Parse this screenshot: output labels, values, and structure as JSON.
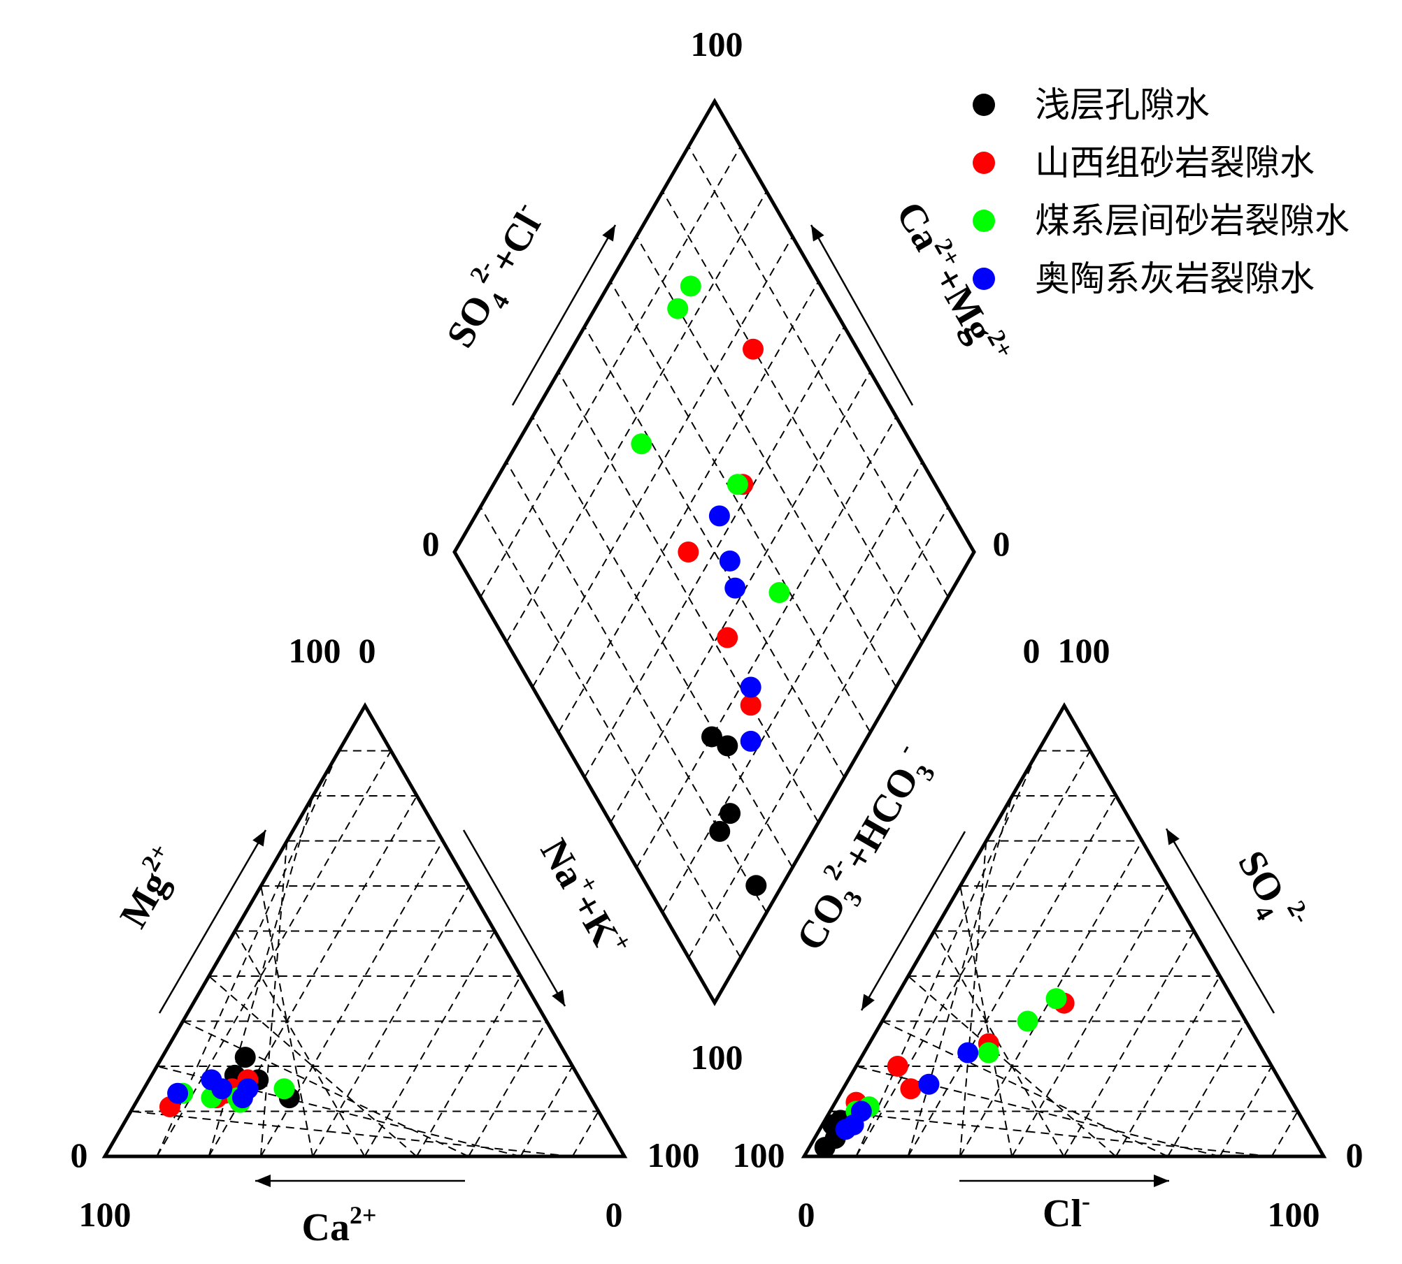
{
  "chart_data": {
    "type": "scatter",
    "subtype": "piper",
    "legend": {
      "position": "top-right",
      "entries": [
        {
          "name": "浅层孔隙水",
          "color": "#000000"
        },
        {
          "name": "山西组砂岩裂隙水",
          "color": "#ff0000"
        },
        {
          "name": "煤系层间砂岩裂隙水",
          "color": "#00ff00"
        },
        {
          "name": "奥陶系灰岩裂隙水",
          "color": "#0000ff"
        }
      ]
    },
    "axes": {
      "cation": {
        "bottom": "Ca",
        "bottom_sup": "2+",
        "left": "Mg",
        "left_sup": "2+",
        "right_a": "Na",
        "right_sup_a": "+",
        "right_b": "+K",
        "right_sup_b": "+"
      },
      "anion": {
        "bottom": "Cl",
        "bottom_sup": "-",
        "right": "SO",
        "right_sub": "4",
        "right_sup": "2-",
        "left_a": "CO",
        "left_sub_a": "3",
        "left_sup_a": "2-",
        "left_b": "+HCO",
        "left_sub_b": "3",
        "left_sup_b": "-"
      },
      "diamond": {
        "upper_left_a": "SO",
        "upper_left_sub": "4",
        "upper_left_sup": "2-",
        "upper_left_b": "+Cl",
        "upper_left_sup_b": "-",
        "upper_right_a": "Ca",
        "upper_right_sup": "2+",
        "upper_right_b": "+Mg",
        "upper_right_sup_b": "2+"
      }
    },
    "tick_labels": {
      "diamond_top": "100",
      "diamond_left": "0",
      "diamond_right": "0",
      "diamond_bottom": "100",
      "cation_apex": "100  0",
      "anion_apex": "0  100",
      "cation_bottom_left": "0",
      "cation_bottom_left_low": "100",
      "cation_bottom_right_low": "0",
      "cation_right": "100",
      "anion_left": "100",
      "anion_bottom_left": "0",
      "anion_right": "0",
      "anion_bottom_right": "100"
    },
    "grid": "dashed, 10% intervals",
    "series": [
      {
        "name": "浅层孔隙水",
        "cation": [
          [
            14,
            71,
            15
          ],
          [
            22,
            62,
            16
          ],
          [
            17,
            62,
            21
          ],
          [
            13,
            58,
            29
          ],
          [
            18,
            66,
            16
          ]
        ],
        "anion": [
          [
            2,
            95,
            3
          ],
          [
            4,
            92,
            4
          ],
          [
            6,
            90,
            4
          ],
          [
            8,
            89,
            3
          ],
          [
            7,
            91,
            2
          ]
        ],
        "diamond": [
          [
            29,
            30
          ],
          [
            31,
            26
          ],
          [
            24,
            18
          ],
          [
            20,
            18
          ],
          [
            21,
            5
          ]
        ]
      },
      {
        "name": "山西组砂岩裂隙水",
        "cation": [
          [
            11,
            82,
            7
          ],
          [
            13,
            72,
            15
          ],
          [
            17,
            64,
            19
          ],
          [
            15,
            68,
            17
          ],
          [
            14,
            70,
            16
          ]
        ],
        "anion": [
          [
            34,
            33,
            33
          ],
          [
            25,
            52,
            23
          ],
          [
            15,
            72,
            13
          ],
          [
            20,
            72,
            8
          ],
          [
            12,
            84,
            4
          ]
        ],
        "diamond": [
          [
            80,
            65
          ],
          [
            63,
            52
          ],
          [
            45,
            55
          ],
          [
            43,
            38
          ],
          [
            40,
            26
          ]
        ]
      },
      {
        "name": "煤系层间砂岩裂隙水",
        "cation": [
          [
            14,
            78,
            8
          ],
          [
            13,
            73,
            14
          ],
          [
            12,
            68,
            20
          ],
          [
            15,
            58,
            27
          ],
          [
            13,
            68,
            19
          ]
        ],
        "anion": [
          [
            35,
            34,
            31
          ],
          [
            30,
            42,
            28
          ],
          [
            23,
            53,
            24
          ],
          [
            11,
            82,
            7
          ],
          [
            10,
            85,
            5
          ]
        ],
        "diamond": [
          [
            75,
            84
          ],
          [
            70,
            84
          ],
          [
            62,
            53
          ],
          [
            58,
            33
          ],
          [
            48,
            76
          ]
        ]
      },
      {
        "name": "奥陶系灰岩裂隙水",
        "cation": [
          [
            14,
            79,
            7
          ],
          [
            17,
            71,
            12
          ],
          [
            15,
            70,
            15
          ],
          [
            13,
            67,
            20
          ],
          [
            15,
            65,
            20
          ]
        ],
        "anion": [
          [
            23,
            57,
            20
          ],
          [
            16,
            68,
            16
          ],
          [
            7,
            87,
            6
          ],
          [
            6,
            89,
            5
          ],
          [
            10,
            84,
            6
          ]
        ],
        "diamond": [
          [
            52,
            46
          ],
          [
            55,
            53
          ],
          [
            50,
            42
          ],
          [
            42,
            28
          ],
          [
            36,
            22
          ]
        ]
      }
    ]
  }
}
